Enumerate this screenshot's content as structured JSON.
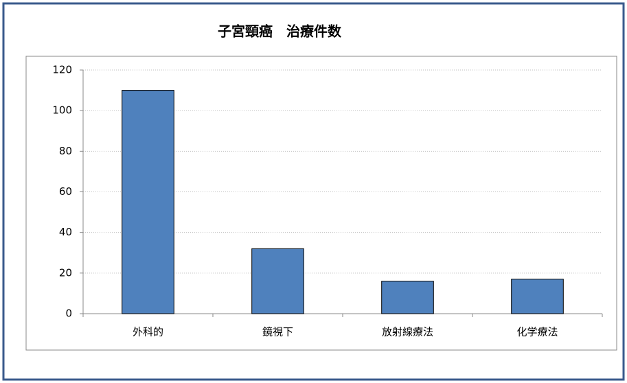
{
  "chart_data": {
    "type": "bar",
    "title": "子宮頸癌　治療件数",
    "categories": [
      "外科的",
      "鏡視下",
      "放射線療法",
      "化学療法"
    ],
    "values": [
      110,
      32,
      16,
      17
    ],
    "color": "#4f81bd",
    "ylim": [
      0,
      120
    ],
    "yticks": [
      0,
      20,
      40,
      60,
      80,
      100,
      120
    ],
    "grid": true
  }
}
